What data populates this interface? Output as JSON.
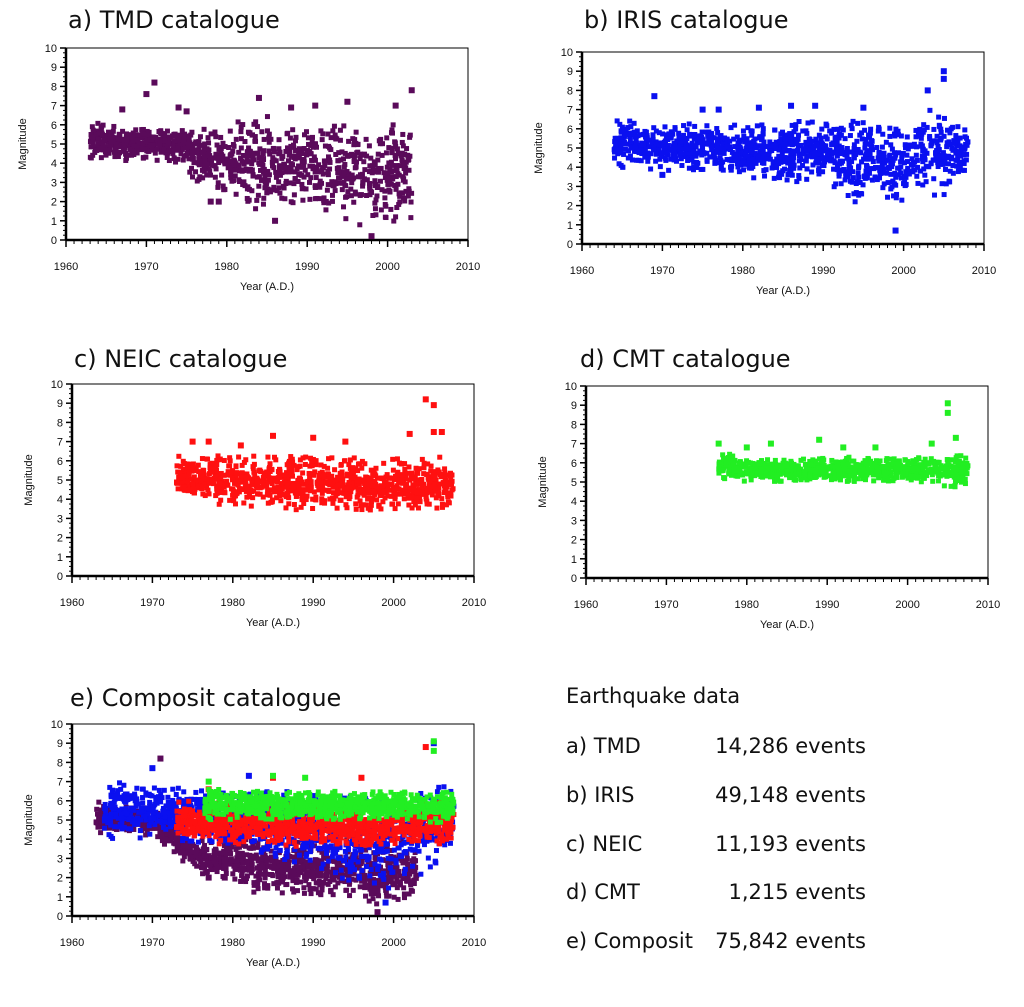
{
  "panels": [
    {
      "title": "a) TMD catalogue"
    },
    {
      "title": "b) IRIS catalogue"
    },
    {
      "title": "c) NEIC catalogue"
    },
    {
      "title": "d) CMT catalogue"
    },
    {
      "title": "e) Composit catalogue"
    }
  ],
  "summary": {
    "title": "Earthquake data",
    "rows": [
      {
        "label": "a) TMD",
        "count": "14,286 events"
      },
      {
        "label": "b) IRIS",
        "count": "49,148 events"
      },
      {
        "label": "c) NEIC",
        "count": "11,193 events"
      },
      {
        "label": "d) CMT",
        "count": "1,215 events"
      },
      {
        "label": "e) Composit",
        "count": "75,842 events"
      }
    ]
  },
  "chart_data": [
    {
      "type": "scatter",
      "title": "a) TMD catalogue",
      "xlabel": "Year (A.D.)",
      "ylabel": "Magnitude",
      "xlim": [
        1960,
        2010
      ],
      "ylim": [
        0,
        10
      ],
      "xticks": [
        "1960",
        "1970",
        "1980",
        "1990",
        "2000",
        "2010"
      ],
      "yticks": [
        "0",
        "1",
        "2",
        "3",
        "4",
        "5",
        "6",
        "7",
        "8",
        "9",
        "10"
      ],
      "series": [
        {
          "color": "#5a0a5a",
          "range": [
            1963,
            2003
          ],
          "band": [
            [
              1963,
              4.2,
              6.2
            ],
            [
              1965,
              4.0,
              6.0
            ],
            [
              1970,
              4.2,
              5.8
            ],
            [
              1975,
              4.0,
              5.8
            ],
            [
              1976,
              2.8,
              6.0
            ],
            [
              1980,
              2.5,
              5.8
            ],
            [
              1983,
              1.2,
              6.8
            ],
            [
              1985,
              1.5,
              6.5
            ],
            [
              1990,
              1.5,
              6.5
            ],
            [
              1995,
              1.0,
              6.3
            ],
            [
              1997,
              0.5,
              6.0
            ],
            [
              2000,
              0.8,
              6.0
            ],
            [
              2003,
              1.0,
              6.0
            ]
          ],
          "outliers": [
            [
              1970,
              7.6
            ],
            [
              1971,
              8.2
            ],
            [
              1967,
              6.8
            ],
            [
              1974,
              6.9
            ],
            [
              1984,
              7.4
            ],
            [
              1988,
              6.9
            ],
            [
              1991,
              7.0
            ],
            [
              1995,
              7.2
            ],
            [
              2003,
              7.8
            ],
            [
              2001,
              7.0
            ],
            [
              1998,
              0.2
            ],
            [
              1978,
              2.0
            ],
            [
              1979,
              2.0
            ],
            [
              1986,
              1.0
            ],
            [
              1975,
              6.7
            ]
          ]
        }
      ]
    },
    {
      "type": "scatter",
      "title": "b) IRIS catalogue",
      "xlabel": "Year (A.D.)",
      "ylabel": "Magnitude",
      "xlim": [
        1960,
        2010
      ],
      "ylim": [
        0,
        10
      ],
      "xticks": [
        "1960",
        "1970",
        "1980",
        "1990",
        "2000",
        "2010"
      ],
      "yticks": [
        "0",
        "1",
        "2",
        "3",
        "4",
        "5",
        "6",
        "7",
        "8",
        "9",
        "10"
      ],
      "series": [
        {
          "color": "#0a10f0",
          "range": [
            1964,
            2008
          ],
          "band": [
            [
              1964,
              4.0,
              6.5
            ],
            [
              1970,
              3.8,
              6.2
            ],
            [
              1975,
              3.8,
              6.3
            ],
            [
              1980,
              3.5,
              6.3
            ],
            [
              1985,
              3.0,
              6.4
            ],
            [
              1990,
              3.5,
              6.4
            ],
            [
              1992,
              2.5,
              6.5
            ],
            [
              1994,
              2.0,
              6.5
            ],
            [
              1996,
              3.0,
              6.3
            ],
            [
              1999,
              1.5,
              6.0
            ],
            [
              2001,
              2.8,
              6.0
            ],
            [
              2003,
              2.5,
              7.5
            ],
            [
              2005,
              2.5,
              7.5
            ],
            [
              2006,
              3.5,
              6.2
            ],
            [
              2008,
              3.5,
              6.2
            ]
          ],
          "outliers": [
            [
              1969,
              7.7
            ],
            [
              1975,
              7.0
            ],
            [
              1977,
              7.0
            ],
            [
              1982,
              7.1
            ],
            [
              1986,
              7.2
            ],
            [
              1989,
              7.2
            ],
            [
              1995,
              7.1
            ],
            [
              1999,
              0.7
            ],
            [
              2003,
              8.0
            ],
            [
              2005,
              9.0
            ],
            [
              2005,
              8.6
            ],
            [
              1970,
              3.6
            ]
          ]
        }
      ]
    },
    {
      "type": "scatter",
      "title": "c) NEIC catalogue",
      "xlabel": "Year (A.D.)",
      "ylabel": "Magnitude",
      "xlim": [
        1960,
        2010
      ],
      "ylim": [
        0,
        10
      ],
      "xticks": [
        "1960",
        "1970",
        "1980",
        "1990",
        "2000",
        "2010"
      ],
      "yticks": [
        "0",
        "1",
        "2",
        "3",
        "4",
        "5",
        "6",
        "7",
        "8",
        "9",
        "10"
      ],
      "series": [
        {
          "color": "#ff1010",
          "range": [
            1973,
            2007.5
          ],
          "band": [
            [
              1973,
              4.0,
              6.3
            ],
            [
              1980,
              3.6,
              6.3
            ],
            [
              1985,
              3.5,
              6.3
            ],
            [
              1990,
              3.4,
              6.2
            ],
            [
              1995,
              3.3,
              6.2
            ],
            [
              2000,
              3.3,
              6.1
            ],
            [
              2004,
              3.2,
              6.2
            ],
            [
              2007.5,
              3.5,
              6.3
            ]
          ],
          "outliers": [
            [
              1975,
              7.0
            ],
            [
              1977,
              7.0
            ],
            [
              1981,
              6.8
            ],
            [
              1985,
              7.3
            ],
            [
              1990,
              7.2
            ],
            [
              1994,
              7.0
            ],
            [
              2002,
              7.4
            ],
            [
              2004,
              9.2
            ],
            [
              2005,
              8.9
            ],
            [
              2006,
              7.5
            ],
            [
              2005,
              7.5
            ]
          ]
        }
      ]
    },
    {
      "type": "scatter",
      "title": "d) CMT catalogue",
      "xlabel": "Year (A.D.)",
      "ylabel": "Magnitude",
      "xlim": [
        1960,
        2010
      ],
      "ylim": [
        0,
        10
      ],
      "xticks": [
        "1960",
        "1970",
        "1980",
        "1990",
        "2000",
        "2010"
      ],
      "yticks": [
        "0",
        "1",
        "2",
        "3",
        "4",
        "5",
        "6",
        "7",
        "8",
        "9",
        "10"
      ],
      "series": [
        {
          "color": "#22ee22",
          "range": [
            1976.5,
            2007.5
          ],
          "band": [
            [
              1976.5,
              5.2,
              6.6
            ],
            [
              1980,
              5.0,
              6.2
            ],
            [
              1985,
              5.0,
              6.2
            ],
            [
              1990,
              5.0,
              6.3
            ],
            [
              1995,
              5.0,
              6.3
            ],
            [
              2000,
              5.0,
              6.2
            ],
            [
              2004,
              4.8,
              6.5
            ],
            [
              2007.5,
              4.7,
              6.4
            ]
          ],
          "outliers": [
            [
              1976.5,
              7.0
            ],
            [
              1980,
              6.8
            ],
            [
              1983,
              7.0
            ],
            [
              1989,
              7.2
            ],
            [
              1992,
              6.8
            ],
            [
              1996,
              6.8
            ],
            [
              2003,
              7.0
            ],
            [
              2005,
              9.1
            ],
            [
              2005,
              8.6
            ],
            [
              2006,
              7.3
            ]
          ]
        }
      ]
    },
    {
      "type": "scatter",
      "title": "e) Composit catalogue",
      "xlabel": "Year (A.D.)",
      "ylabel": "Magnitude",
      "xlim": [
        1960,
        2010
      ],
      "ylim": [
        0,
        10
      ],
      "xticks": [
        "1960",
        "1970",
        "1980",
        "1990",
        "2000",
        "2010"
      ],
      "yticks": [
        "0",
        "1",
        "2",
        "3",
        "4",
        "5",
        "6",
        "7",
        "8",
        "9",
        "10"
      ],
      "series": [
        {
          "color": "#5a0a5a",
          "range": [
            1963,
            2003
          ],
          "band": [
            [
              1963,
              4.2,
              6.0
            ],
            [
              1970,
              4.2,
              5.6
            ],
            [
              1976,
              2.0,
              4.0
            ],
            [
              1980,
              2.0,
              4.0
            ],
            [
              1983,
              1.0,
              4.0
            ],
            [
              1990,
              1.0,
              4.0
            ],
            [
              1995,
              0.8,
              4.0
            ],
            [
              1998,
              0.2,
              4.0
            ],
            [
              2003,
              1.0,
              4.0
            ]
          ],
          "outliers": [
            [
              1971,
              8.2
            ],
            [
              1998,
              0.2
            ],
            [
              1977,
              2.0
            ],
            [
              1979,
              2.0
            ]
          ]
        },
        {
          "color": "#0a10f0",
          "range": [
            1964,
            2007.5
          ],
          "band": [
            [
              1964,
              4.0,
              7.0
            ],
            [
              1970,
              4.0,
              6.8
            ],
            [
              1975,
              3.8,
              6.6
            ],
            [
              1980,
              3.5,
              6.5
            ],
            [
              1985,
              3.0,
              6.5
            ],
            [
              1990,
              2.5,
              6.5
            ],
            [
              1995,
              1.5,
              6.3
            ],
            [
              1999,
              1.0,
              6.3
            ],
            [
              2003,
              2.0,
              7.0
            ],
            [
              2007.5,
              3.5,
              6.8
            ]
          ],
          "outliers": [
            [
              1970,
              7.7
            ],
            [
              1982,
              7.3
            ],
            [
              2005,
              9.0
            ],
            [
              1999,
              0.7
            ]
          ]
        },
        {
          "color": "#ff1010",
          "range": [
            1973,
            2007.5
          ],
          "band": [
            [
              1973,
              3.8,
              6.0
            ],
            [
              1980,
              3.7,
              5.9
            ],
            [
              1990,
              3.6,
              5.8
            ],
            [
              2000,
              3.6,
              5.8
            ],
            [
              2007.5,
              3.8,
              6.0
            ]
          ],
          "outliers": [
            [
              1985,
              7.2
            ],
            [
              1996,
              7.2
            ],
            [
              2004,
              8.8
            ],
            [
              1977,
              6.6
            ]
          ]
        },
        {
          "color": "#22ee22",
          "range": [
            1976.5,
            2007.5
          ],
          "band": [
            [
              1976.5,
              5.0,
              6.8
            ],
            [
              1980,
              5.0,
              6.5
            ],
            [
              1990,
              5.0,
              6.5
            ],
            [
              2000,
              5.0,
              6.5
            ],
            [
              2007.5,
              4.8,
              6.5
            ]
          ],
          "outliers": [
            [
              1977,
              7.0
            ],
            [
              1985,
              7.3
            ],
            [
              1989,
              7.2
            ],
            [
              2005,
              9.1
            ],
            [
              2005,
              8.6
            ]
          ]
        }
      ]
    }
  ]
}
